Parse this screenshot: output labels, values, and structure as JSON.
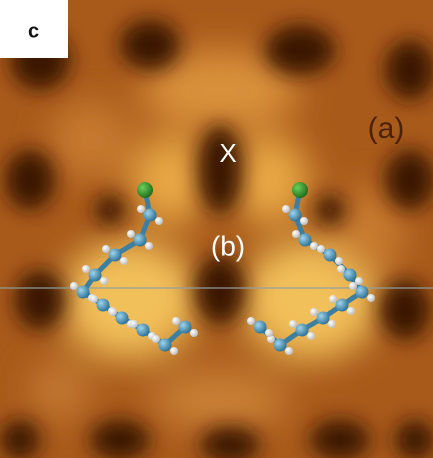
{
  "panel_label": "c",
  "annotations": [
    "(a)",
    "X",
    "(b)"
  ]
}
